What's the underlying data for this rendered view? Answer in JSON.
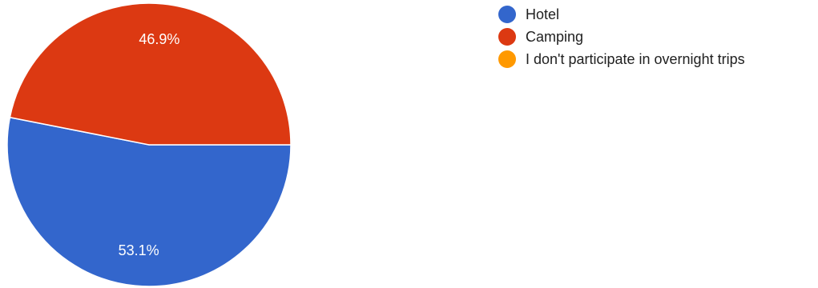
{
  "chart_data": {
    "type": "pie",
    "categories": [
      "Hotel",
      "Camping",
      "I don't participate in overnight trips"
    ],
    "values": [
      53.1,
      46.9,
      0
    ],
    "labels": [
      "53.1%",
      "46.9%",
      ""
    ],
    "colors": [
      "#3366cc",
      "#dc3912",
      "#ff9900"
    ],
    "legend_position": "right",
    "start": "3 o'clock",
    "direction": "clockwise"
  }
}
